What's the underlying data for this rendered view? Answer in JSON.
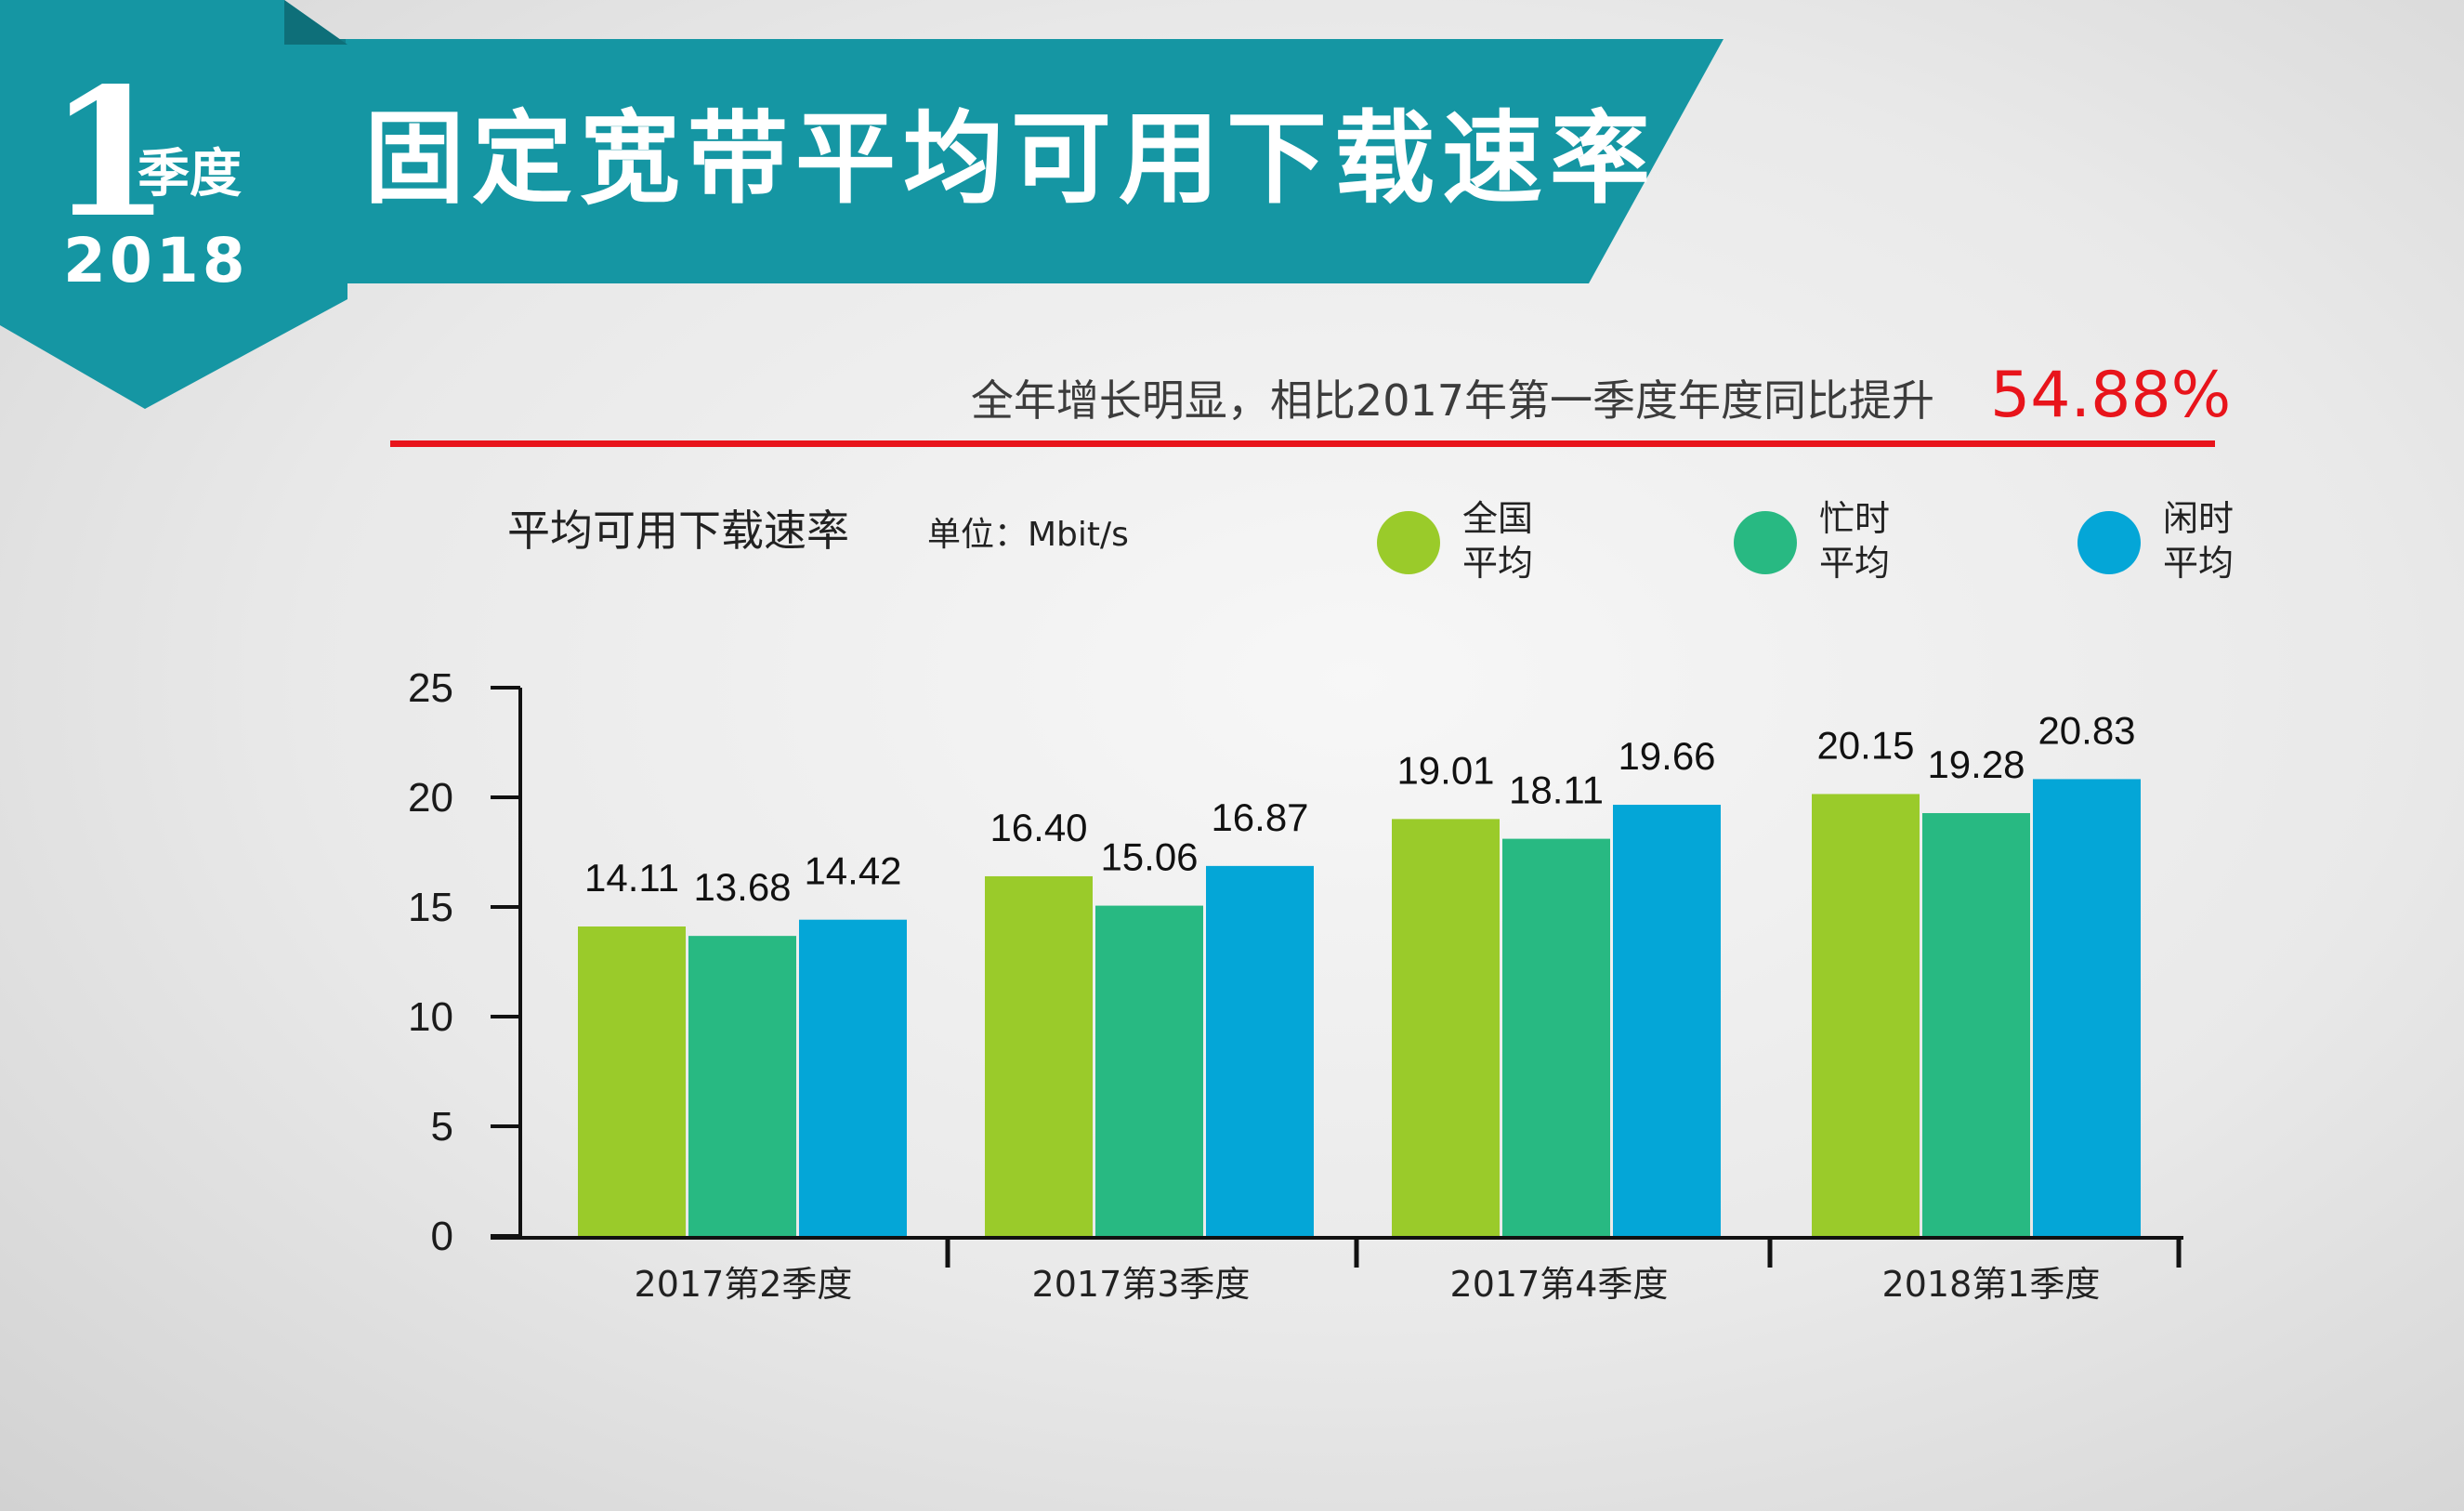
{
  "badge": {
    "number": "1",
    "quarter": "季度",
    "year": "2018"
  },
  "banner": {
    "title": "固定宽带平均可用下载速率"
  },
  "headline": {
    "text": "全年增长明显，相比2017年第一季度年度同比提升",
    "value": "54.88%"
  },
  "chart_header": {
    "title": "平均可用下载速率",
    "unit": "单位：Mbit/s"
  },
  "colors": {
    "teal": "#1596a3",
    "teal_dark": "#127e89",
    "red": "#e8141b",
    "green_light": "#9acb2a",
    "green": "#28b982",
    "blue": "#04a6d7"
  },
  "chart_data": {
    "type": "bar",
    "categories": [
      "2017第2季度",
      "2017第3季度",
      "2017第4季度",
      "2018第1季度"
    ],
    "series": [
      {
        "name": "全国平均",
        "label": [
          "全国",
          "平均"
        ],
        "color": "#9acb2a",
        "values": [
          14.11,
          16.4,
          19.01,
          20.15
        ]
      },
      {
        "name": "忙时平均",
        "label": [
          "忙时",
          "平均"
        ],
        "color": "#28b982",
        "values": [
          13.68,
          15.06,
          18.11,
          19.28
        ]
      },
      {
        "name": "闲时平均",
        "label": [
          "闲时",
          "平均"
        ],
        "color": "#04a6d7",
        "values": [
          14.42,
          16.87,
          19.66,
          20.83
        ]
      }
    ],
    "data_labels": [
      [
        "14.11",
        "13.68",
        "14.42"
      ],
      [
        "16.40",
        "15.06",
        "16.87"
      ],
      [
        "19.01",
        "18.11",
        "19.66"
      ],
      [
        "20.15",
        "19.28",
        "20.83"
      ]
    ],
    "yticks": [
      "0",
      "5",
      "10",
      "15",
      "20",
      "25"
    ],
    "ylim": [
      0,
      25
    ],
    "xlabel": "",
    "ylabel": "",
    "legend_position": "top-right",
    "grid": false
  }
}
